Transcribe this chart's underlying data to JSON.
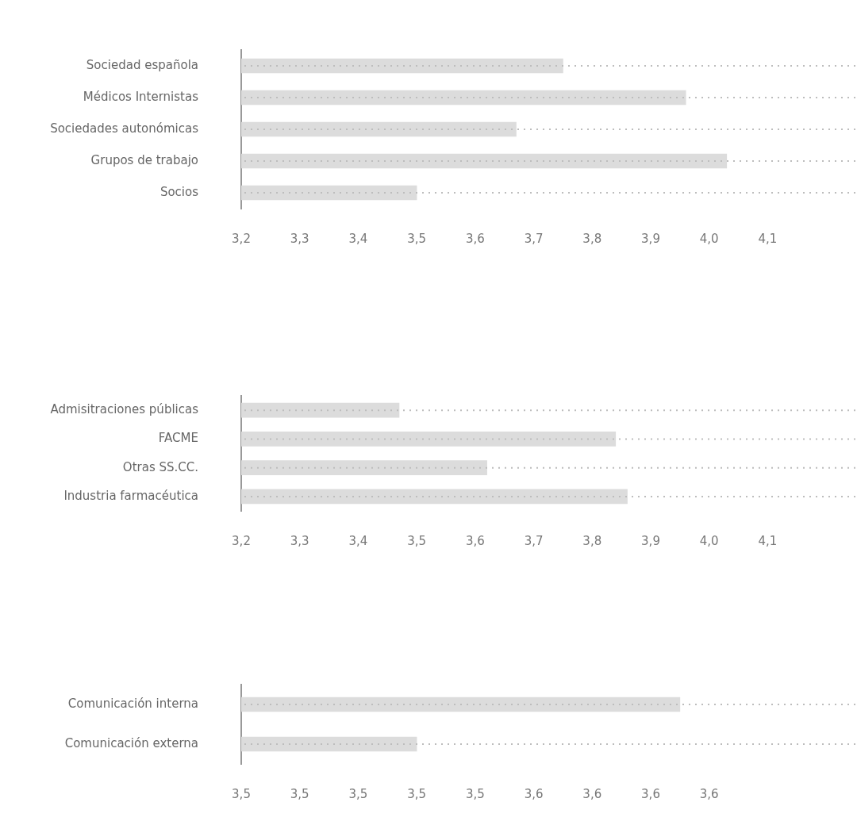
{
  "chart_data": [
    {
      "type": "bar",
      "orientation": "horizontal",
      "categories": [
        "Sociedad española",
        "Médicos Internistas",
        "Sociedades autonómicas",
        "Grupos de trabajo",
        "Socios"
      ],
      "values": [
        3.75,
        3.96,
        3.67,
        4.03,
        3.5
      ],
      "color": "#dcdcdc",
      "xlim": [
        3.2,
        4.25
      ],
      "xticks": [
        {
          "value": 3.2,
          "label": "3,2"
        },
        {
          "value": 3.3,
          "label": "3,3"
        },
        {
          "value": 3.4,
          "label": "3,4"
        },
        {
          "value": 3.5,
          "label": "3,5"
        },
        {
          "value": 3.6,
          "label": "3,6"
        },
        {
          "value": 3.7,
          "label": "3,7"
        },
        {
          "value": 3.8,
          "label": "3,8"
        },
        {
          "value": 3.9,
          "label": "3,9"
        },
        {
          "value": 4.0,
          "label": "4,0"
        },
        {
          "value": 4.1,
          "label": "4,1"
        }
      ],
      "grid": "y",
      "legend": false
    },
    {
      "type": "bar",
      "orientation": "horizontal",
      "categories": [
        "Admisitraciones públicas",
        "FACME",
        "Otras SS.CC.",
        "Industria farmacéutica"
      ],
      "values": [
        3.47,
        3.84,
        3.62,
        3.86
      ],
      "color": "#dcdcdc",
      "xlim": [
        3.2,
        4.25
      ],
      "xticks": [
        {
          "value": 3.2,
          "label": "3,2"
        },
        {
          "value": 3.3,
          "label": "3,3"
        },
        {
          "value": 3.4,
          "label": "3,4"
        },
        {
          "value": 3.5,
          "label": "3,5"
        },
        {
          "value": 3.6,
          "label": "3,6"
        },
        {
          "value": 3.7,
          "label": "3,7"
        },
        {
          "value": 3.8,
          "label": "3,8"
        },
        {
          "value": 3.9,
          "label": "3,9"
        },
        {
          "value": 4.0,
          "label": "4,0"
        },
        {
          "value": 4.1,
          "label": "4,1"
        }
      ],
      "grid": "y",
      "legend": false
    },
    {
      "type": "bar",
      "orientation": "horizontal",
      "categories": [
        "Comunicación interna",
        "Comunicación externa"
      ],
      "values": [
        3.61,
        3.52
      ],
      "color": "#dcdcdc",
      "xlim": [
        3.46,
        3.67
      ],
      "xticks": [
        {
          "value": 3.46,
          "label": "3,5"
        },
        {
          "value": 3.48,
          "label": "3,5"
        },
        {
          "value": 3.5,
          "label": "3,5"
        },
        {
          "value": 3.52,
          "label": "3,5"
        },
        {
          "value": 3.54,
          "label": "3,5"
        },
        {
          "value": 3.56,
          "label": "3,6"
        },
        {
          "value": 3.58,
          "label": "3,6"
        },
        {
          "value": 3.6,
          "label": "3,6"
        },
        {
          "value": 3.62,
          "label": "3,6"
        }
      ],
      "grid": "y",
      "legend": false
    }
  ]
}
